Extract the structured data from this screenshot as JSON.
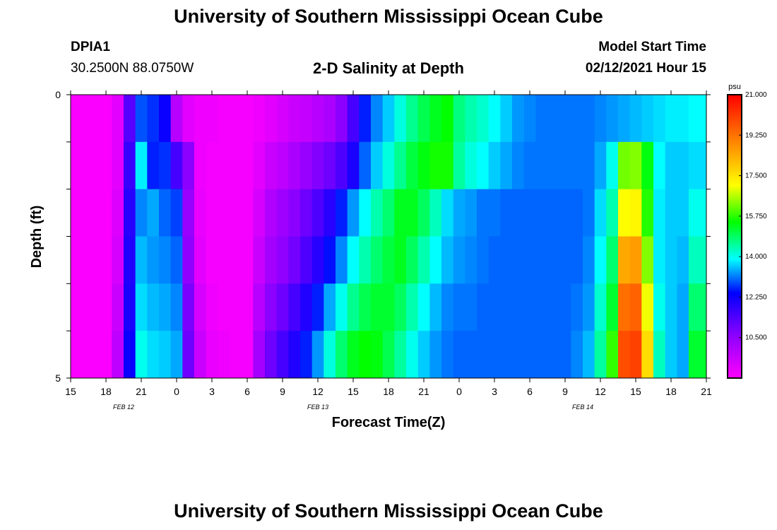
{
  "page": {
    "title": "University of Southern Mississippi Ocean Cube",
    "footer_title": "University of Southern Mississippi Ocean Cube",
    "station": "DPIA1",
    "coordinates": "30.2500N 88.0750W",
    "subtitle": "2-D Salinity at Depth",
    "model_start_label": "Model Start Time",
    "model_start_value": "02/12/2021 Hour 15"
  },
  "colors": {
    "magenta": "#ff00ff",
    "purple": "#8c00ff",
    "blue": "#0000ff",
    "cyan": "#00ffff",
    "green": "#00ff00",
    "yellow": "#ffff00",
    "orange": "#ff8000",
    "red": "#ff0000"
  },
  "chart_data": {
    "type": "heatmap",
    "title": "2-D Salinity at Depth",
    "xlabel": "Forecast Time(Z)",
    "ylabel": "Depth (ft)",
    "x_tick_labels": [
      "15",
      "18",
      "21",
      "0",
      "3",
      "6",
      "9",
      "12",
      "15",
      "18",
      "21",
      "0",
      "3",
      "6",
      "9",
      "12",
      "15",
      "18",
      "21"
    ],
    "date_labels": [
      {
        "text": "FEB 12",
        "hour_offset": 4.5
      },
      {
        "text": "FEB 13",
        "hour_offset": 21
      },
      {
        "text": "FEB 14",
        "hour_offset": 43.5
      }
    ],
    "x_range_hours": [
      0,
      54
    ],
    "y_tick_labels": [
      "0",
      "5"
    ],
    "y_range_ft": [
      0,
      5
    ],
    "depth_levels": 5,
    "colorbar": {
      "unit": "psu",
      "ticks": [
        "21.000",
        "19.250",
        "17.500",
        "15.750",
        "14.000",
        "12.250",
        "10.500"
      ],
      "range": [
        8.75,
        21.0
      ]
    },
    "hours": [
      0,
      1,
      2,
      3,
      4,
      5,
      6,
      7,
      8,
      9,
      10,
      11,
      12,
      13,
      14,
      15,
      16,
      17,
      18,
      19,
      20,
      21,
      22,
      23,
      24,
      25,
      26,
      27,
      28,
      29,
      30,
      31,
      32,
      33,
      34,
      35,
      36,
      37,
      38,
      39,
      40,
      41,
      42,
      43,
      44,
      45,
      46,
      47,
      48,
      49,
      50,
      51,
      52,
      53,
      54
    ],
    "salinity_by_depth_psu": [
      [
        8.8,
        8.8,
        8.8,
        8.8,
        9.2,
        11.3,
        12.9,
        12.7,
        12.3,
        9.9,
        9.2,
        9.0,
        9.0,
        8.9,
        8.9,
        8.9,
        9.0,
        9.2,
        9.4,
        9.6,
        9.7,
        9.9,
        10.1,
        10.6,
        11.5,
        12.6,
        13.2,
        13.6,
        14.1,
        14.6,
        15.0,
        15.3,
        15.5,
        14.7,
        14.4,
        14.2,
        13.9,
        13.6,
        13.3,
        13.2,
        13.1,
        13.1,
        13.1,
        13.1,
        13.1,
        13.2,
        13.3,
        13.4,
        13.5,
        13.6,
        13.7,
        13.8,
        13.8,
        13.9,
        13.9
      ],
      [
        8.8,
        8.8,
        8.8,
        8.8,
        9.2,
        11.7,
        13.8,
        12.6,
        12.7,
        11.5,
        10.6,
        9.0,
        8.9,
        8.9,
        8.9,
        8.9,
        9.2,
        9.6,
        9.8,
        10.1,
        10.4,
        10.7,
        11.0,
        11.4,
        12.1,
        13.0,
        13.6,
        14.1,
        14.6,
        15.1,
        15.4,
        15.6,
        15.6,
        14.5,
        14.1,
        13.9,
        13.6,
        13.4,
        13.2,
        13.1,
        13.1,
        13.1,
        13.1,
        13.1,
        13.1,
        13.4,
        14.0,
        16.2,
        16.3,
        15.4,
        13.9,
        13.6,
        13.6,
        13.7,
        13.7
      ],
      [
        8.8,
        8.8,
        8.8,
        8.8,
        9.3,
        11.9,
        13.2,
        13.4,
        13.0,
        12.8,
        10.4,
        9.1,
        8.9,
        8.9,
        8.9,
        8.9,
        9.4,
        10.0,
        10.3,
        10.6,
        11.0,
        11.4,
        11.9,
        12.6,
        13.3,
        13.9,
        14.4,
        14.8,
        15.3,
        15.3,
        14.9,
        14.3,
        13.7,
        13.4,
        13.3,
        13.1,
        13.1,
        13.0,
        13.0,
        13.0,
        13.0,
        13.0,
        13.0,
        13.0,
        13.1,
        13.7,
        14.4,
        17.1,
        17.2,
        15.7,
        13.8,
        13.6,
        13.6,
        14.0,
        14.0
      ],
      [
        8.8,
        8.8,
        8.8,
        8.8,
        9.4,
        12.0,
        13.5,
        13.3,
        13.2,
        13.0,
        10.5,
        9.2,
        8.9,
        8.9,
        8.9,
        8.9,
        9.6,
        10.2,
        10.5,
        10.9,
        11.4,
        11.9,
        12.5,
        13.2,
        13.9,
        14.4,
        14.8,
        15.1,
        15.3,
        14.9,
        14.4,
        13.9,
        13.5,
        13.3,
        13.2,
        13.1,
        13.0,
        13.0,
        13.0,
        13.0,
        13.0,
        13.0,
        13.0,
        13.0,
        13.2,
        13.9,
        14.8,
        18.4,
        18.6,
        16.3,
        13.8,
        13.6,
        13.5,
        14.3,
        14.3
      ],
      [
        8.8,
        8.8,
        8.8,
        8.8,
        9.6,
        12.1,
        13.7,
        13.5,
        13.4,
        13.2,
        10.8,
        9.4,
        9.0,
        8.9,
        8.9,
        8.9,
        9.9,
        10.6,
        11.0,
        11.5,
        12.0,
        12.6,
        13.4,
        14.0,
        14.6,
        15.0,
        15.2,
        15.2,
        14.9,
        14.4,
        13.9,
        13.5,
        13.2,
        13.1,
        13.1,
        13.0,
        13.0,
        13.0,
        13.0,
        13.0,
        13.0,
        13.0,
        13.0,
        13.1,
        13.3,
        14.2,
        15.2,
        19.3,
        19.5,
        17.0,
        14.0,
        13.6,
        13.4,
        14.8,
        14.8
      ],
      [
        8.8,
        8.8,
        8.8,
        8.8,
        9.8,
        12.3,
        14.0,
        13.7,
        13.6,
        13.4,
        11.0,
        9.6,
        9.1,
        9.0,
        8.9,
        8.9,
        10.2,
        11.0,
        11.5,
        12.0,
        12.6,
        13.3,
        14.1,
        14.8,
        15.3,
        15.5,
        15.4,
        15.0,
        14.5,
        14.0,
        13.6,
        13.3,
        13.1,
        13.0,
        13.0,
        13.0,
        13.0,
        13.0,
        13.0,
        13.0,
        13.0,
        13.0,
        13.0,
        13.2,
        13.5,
        14.5,
        15.8,
        19.8,
        20.0,
        17.6,
        14.3,
        13.6,
        13.4,
        15.2,
        15.2
      ]
    ]
  }
}
